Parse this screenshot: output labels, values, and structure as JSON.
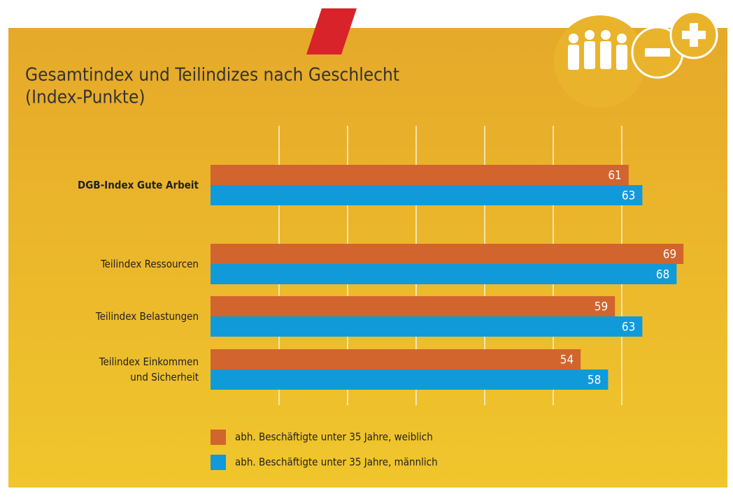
{
  "chart_data": {
    "type": "hbar",
    "title": "Gesamtindex und Teilindizes nach Geschlecht",
    "subtitle": "(Index-Punkte)",
    "categories": [
      "DGB-Index Gute Arbeit",
      "Teilindex Ressourcen",
      "Teilindex Belastungen",
      "Teilindex Einkommen\nund Sicherheit"
    ],
    "series": [
      {
        "name": "abh. Beschäftigte unter 35 Jahre, weiblich",
        "color": "#d2642e",
        "values": [
          61,
          69,
          59,
          54
        ]
      },
      {
        "name": "abh. Beschäftigte unter 35 Jahre, männlich",
        "color": "#119ad9",
        "values": [
          63,
          68,
          63,
          58
        ]
      }
    ],
    "xlim": [
      0,
      70
    ],
    "xticks": [
      10,
      20,
      30,
      40,
      50,
      60
    ],
    "grid": true
  }
}
